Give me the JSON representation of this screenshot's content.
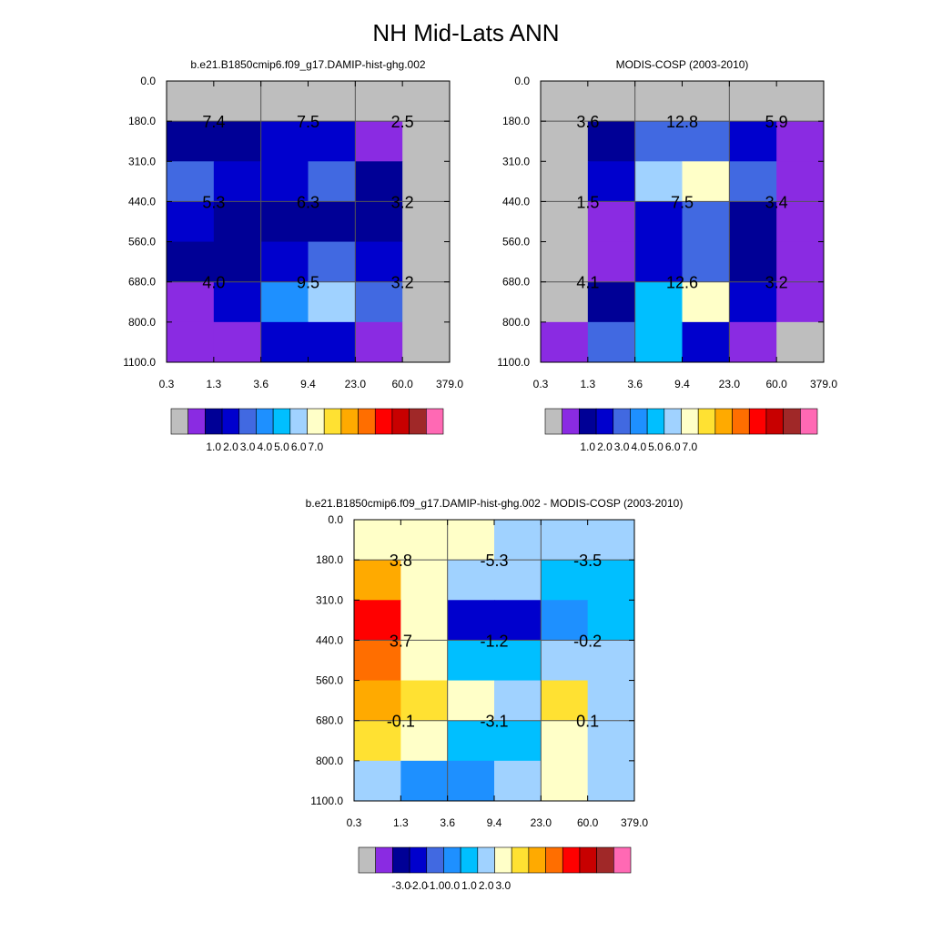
{
  "title": "NH Mid-Lats ANN",
  "chart_data": [
    {
      "type": "heatmap",
      "title": "b.e21.B1850cmip6.f09_g17.DAMIP-hist-ghg.002",
      "x_ticks": [
        "0.3",
        "1.3",
        "3.6",
        "9.4",
        "23.0",
        "60.0",
        "379.0"
      ],
      "y_ticks": [
        "0.0",
        "180.0",
        "310.0",
        "440.0",
        "560.0",
        "680.0",
        "800.0",
        "1100.0"
      ],
      "cells": [
        [
          "#bebebe",
          "#bebebe",
          "#bebebe",
          "#bebebe",
          "#bebebe",
          "#bebebe"
        ],
        [
          "#000096",
          "#000096",
          "#0000cd",
          "#0000cd",
          "#8a2be2",
          "#bebebe"
        ],
        [
          "#4169e1",
          "#0000cd",
          "#0000cd",
          "#4169e1",
          "#000096",
          "#bebebe"
        ],
        [
          "#0000cd",
          "#000096",
          "#000096",
          "#000096",
          "#000096",
          "#bebebe"
        ],
        [
          "#000096",
          "#000096",
          "#0000cd",
          "#4169e1",
          "#0000cd",
          "#bebebe"
        ],
        [
          "#8a2be2",
          "#0000cd",
          "#1e90ff",
          "#a0d2ff",
          "#4169e1",
          "#bebebe"
        ],
        [
          "#8a2be2",
          "#8a2be2",
          "#0000cd",
          "#0000cd",
          "#8a2be2",
          "#bebebe"
        ]
      ],
      "labels": [
        {
          "row": 1,
          "col": 0,
          "text": "7.4"
        },
        {
          "row": 1,
          "col": 1,
          "text": "7.5"
        },
        {
          "row": 1,
          "col": 2,
          "text": "2.5"
        },
        {
          "row": 2,
          "col": 0,
          "text": "5.3"
        },
        {
          "row": 2,
          "col": 1,
          "text": "6.3"
        },
        {
          "row": 2,
          "col": 2,
          "text": "3.2"
        },
        {
          "row": 3,
          "col": 0,
          "text": "4.0"
        },
        {
          "row": 3,
          "col": 1,
          "text": "9.5"
        },
        {
          "row": 3,
          "col": 2,
          "text": "3.2"
        }
      ],
      "colorbar": {
        "colors": [
          "#bebebe",
          "#8a2be2",
          "#000096",
          "#0000cd",
          "#4169e1",
          "#1e90ff",
          "#00bfff",
          "#a0d2ff",
          "#ffffc8",
          "#ffe132",
          "#ffaa00",
          "#ff6e00",
          "#ff0000",
          "#c80000",
          "#a02828",
          "#ff69b4"
        ],
        "labels": [
          "1.0",
          "2.0",
          "3.0",
          "4.0",
          "5.0",
          "6.0",
          "7.0"
        ]
      }
    },
    {
      "type": "heatmap",
      "title": "MODIS-COSP (2003-2010)",
      "x_ticks": [
        "0.3",
        "1.3",
        "3.6",
        "9.4",
        "23.0",
        "60.0",
        "379.0"
      ],
      "y_ticks": [
        "0.0",
        "180.0",
        "310.0",
        "440.0",
        "560.0",
        "680.0",
        "800.0",
        "1100.0"
      ],
      "cells": [
        [
          "#bebebe",
          "#bebebe",
          "#bebebe",
          "#bebebe",
          "#bebebe",
          "#bebebe"
        ],
        [
          "#bebebe",
          "#000096",
          "#4169e1",
          "#4169e1",
          "#0000cd",
          "#8a2be2"
        ],
        [
          "#bebebe",
          "#0000cd",
          "#a0d2ff",
          "#ffffc8",
          "#4169e1",
          "#8a2be2"
        ],
        [
          "#bebebe",
          "#8a2be2",
          "#0000cd",
          "#4169e1",
          "#000096",
          "#8a2be2"
        ],
        [
          "#bebebe",
          "#8a2be2",
          "#0000cd",
          "#4169e1",
          "#000096",
          "#8a2be2"
        ],
        [
          "#bebebe",
          "#000096",
          "#00bfff",
          "#ffffc8",
          "#0000cd",
          "#8a2be2"
        ],
        [
          "#8a2be2",
          "#4169e1",
          "#00bfff",
          "#0000cd",
          "#8a2be2",
          "#bebebe"
        ]
      ],
      "labels": [
        {
          "row": 1,
          "col": 0,
          "text": "3.6"
        },
        {
          "row": 1,
          "col": 1,
          "text": "12.8"
        },
        {
          "row": 1,
          "col": 2,
          "text": "5.9"
        },
        {
          "row": 2,
          "col": 0,
          "text": "1.5"
        },
        {
          "row": 2,
          "col": 1,
          "text": "7.5"
        },
        {
          "row": 2,
          "col": 2,
          "text": "3.4"
        },
        {
          "row": 3,
          "col": 0,
          "text": "4.1"
        },
        {
          "row": 3,
          "col": 1,
          "text": "12.6"
        },
        {
          "row": 3,
          "col": 2,
          "text": "3.2"
        }
      ],
      "colorbar": {
        "colors": [
          "#bebebe",
          "#8a2be2",
          "#000096",
          "#0000cd",
          "#4169e1",
          "#1e90ff",
          "#00bfff",
          "#a0d2ff",
          "#ffffc8",
          "#ffe132",
          "#ffaa00",
          "#ff6e00",
          "#ff0000",
          "#c80000",
          "#a02828",
          "#ff69b4"
        ],
        "labels": [
          "1.0",
          "2.0",
          "3.0",
          "4.0",
          "5.0",
          "6.0",
          "7.0"
        ]
      }
    },
    {
      "type": "heatmap",
      "title": "b.e21.B1850cmip6.f09_g17.DAMIP-hist-ghg.002 - MODIS-COSP (2003-2010)",
      "x_ticks": [
        "0.3",
        "1.3",
        "3.6",
        "9.4",
        "23.0",
        "60.0",
        "379.0"
      ],
      "y_ticks": [
        "0.0",
        "180.0",
        "310.0",
        "440.0",
        "560.0",
        "680.0",
        "800.0",
        "1100.0"
      ],
      "cells": [
        [
          "#ffffc8",
          "#ffffc8",
          "#ffffc8",
          "#a0d2ff",
          "#a0d2ff",
          "#a0d2ff"
        ],
        [
          "#ffaa00",
          "#ffffc8",
          "#a0d2ff",
          "#a0d2ff",
          "#00bfff",
          "#00bfff"
        ],
        [
          "#ff0000",
          "#ffffc8",
          "#0000cd",
          "#0000cd",
          "#1e90ff",
          "#00bfff"
        ],
        [
          "#ff6e00",
          "#ffffc8",
          "#00bfff",
          "#00bfff",
          "#a0d2ff",
          "#a0d2ff"
        ],
        [
          "#ffaa00",
          "#ffe132",
          "#ffffc8",
          "#a0d2ff",
          "#ffe132",
          "#a0d2ff"
        ],
        [
          "#ffe132",
          "#ffffc8",
          "#00bfff",
          "#00bfff",
          "#ffffc8",
          "#a0d2ff"
        ],
        [
          "#a0d2ff",
          "#1e90ff",
          "#1e90ff",
          "#a0d2ff",
          "#ffffc8",
          "#a0d2ff"
        ]
      ],
      "labels": [
        {
          "row": 1,
          "col": 0,
          "text": "3.8"
        },
        {
          "row": 1,
          "col": 1,
          "text": "-5.3"
        },
        {
          "row": 1,
          "col": 2,
          "text": "-3.5"
        },
        {
          "row": 2,
          "col": 0,
          "text": "3.7"
        },
        {
          "row": 2,
          "col": 1,
          "text": "-1.2"
        },
        {
          "row": 2,
          "col": 2,
          "text": "-0.2"
        },
        {
          "row": 3,
          "col": 0,
          "text": "-0.1"
        },
        {
          "row": 3,
          "col": 1,
          "text": "-3.1"
        },
        {
          "row": 3,
          "col": 2,
          "text": "0.1"
        }
      ],
      "colorbar": {
        "colors": [
          "#bebebe",
          "#8a2be2",
          "#000096",
          "#0000cd",
          "#4169e1",
          "#1e90ff",
          "#00bfff",
          "#a0d2ff",
          "#ffffc8",
          "#ffe132",
          "#ffaa00",
          "#ff6e00",
          "#ff0000",
          "#c80000",
          "#a02828",
          "#ff69b4"
        ],
        "labels": [
          "-3.0",
          "-2.0",
          "-1.0",
          "0.0",
          "1.0",
          "2.0",
          "3.0"
        ]
      }
    }
  ]
}
